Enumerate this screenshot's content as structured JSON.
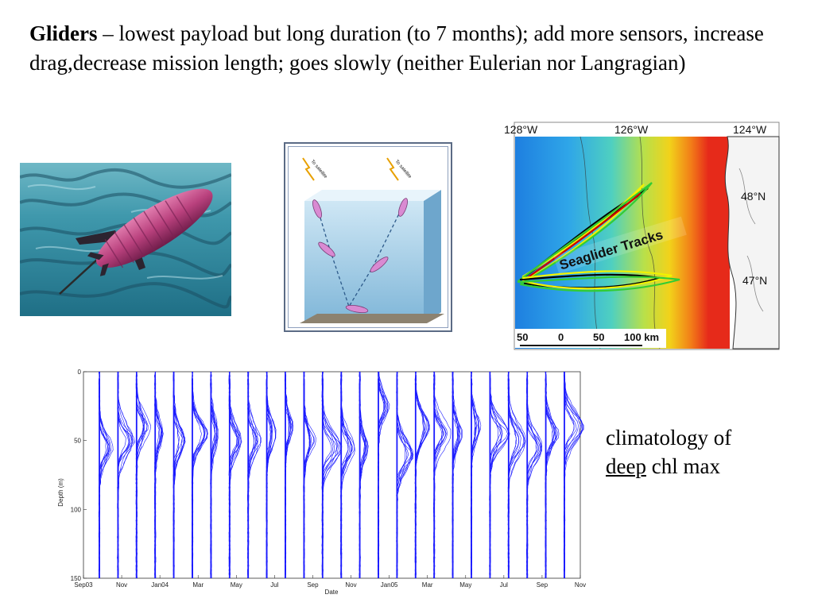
{
  "slide": {
    "heading_bold": "Gliders",
    "heading_rest": " – lowest payload but long duration (to 7 months); add more sensors, increase drag,decrease mission length; goes slowly (neither Eulerian nor Langragian)",
    "caption_line1": "climatology of",
    "caption_underlined": "deep",
    "caption_rest": " chl max"
  },
  "diagram": {
    "satellite_label_left": "To satellite",
    "satellite_label_right": "To satellite"
  },
  "map": {
    "lon_labels": [
      "128°W",
      "126°W",
      "124°W"
    ],
    "lat_labels": [
      "48°N",
      "47°N"
    ],
    "track_label": "Seaglider Tracks",
    "scale_labels": [
      "50",
      "0",
      "50",
      "100 km"
    ]
  },
  "chart_data": {
    "type": "line",
    "title": "",
    "xlabel": "Date",
    "ylabel": "Depth (m)",
    "ylim": [
      0,
      150
    ],
    "y_inverted": true,
    "y_ticks": [
      0,
      50,
      100,
      150
    ],
    "x_tick_labels": [
      "Sep03",
      "Nov",
      "Jan04",
      "Mar",
      "May",
      "Jul",
      "Sep",
      "Nov",
      "Jan05",
      "Mar",
      "May",
      "Jul",
      "Sep",
      "Nov"
    ],
    "profiles_chl_max_depth_m": [
      55,
      50,
      40,
      45,
      50,
      45,
      45,
      50,
      50,
      45,
      40,
      50,
      55,
      55,
      55,
      25,
      60,
      40,
      45,
      45,
      40,
      45,
      50,
      55,
      45,
      40
    ]
  },
  "colors": {
    "profile_line": "#1a1aff",
    "track_black": "#000000",
    "track_yellow": "#f2f200",
    "track_green": "#33cc33",
    "track_red": "#cc0000"
  }
}
